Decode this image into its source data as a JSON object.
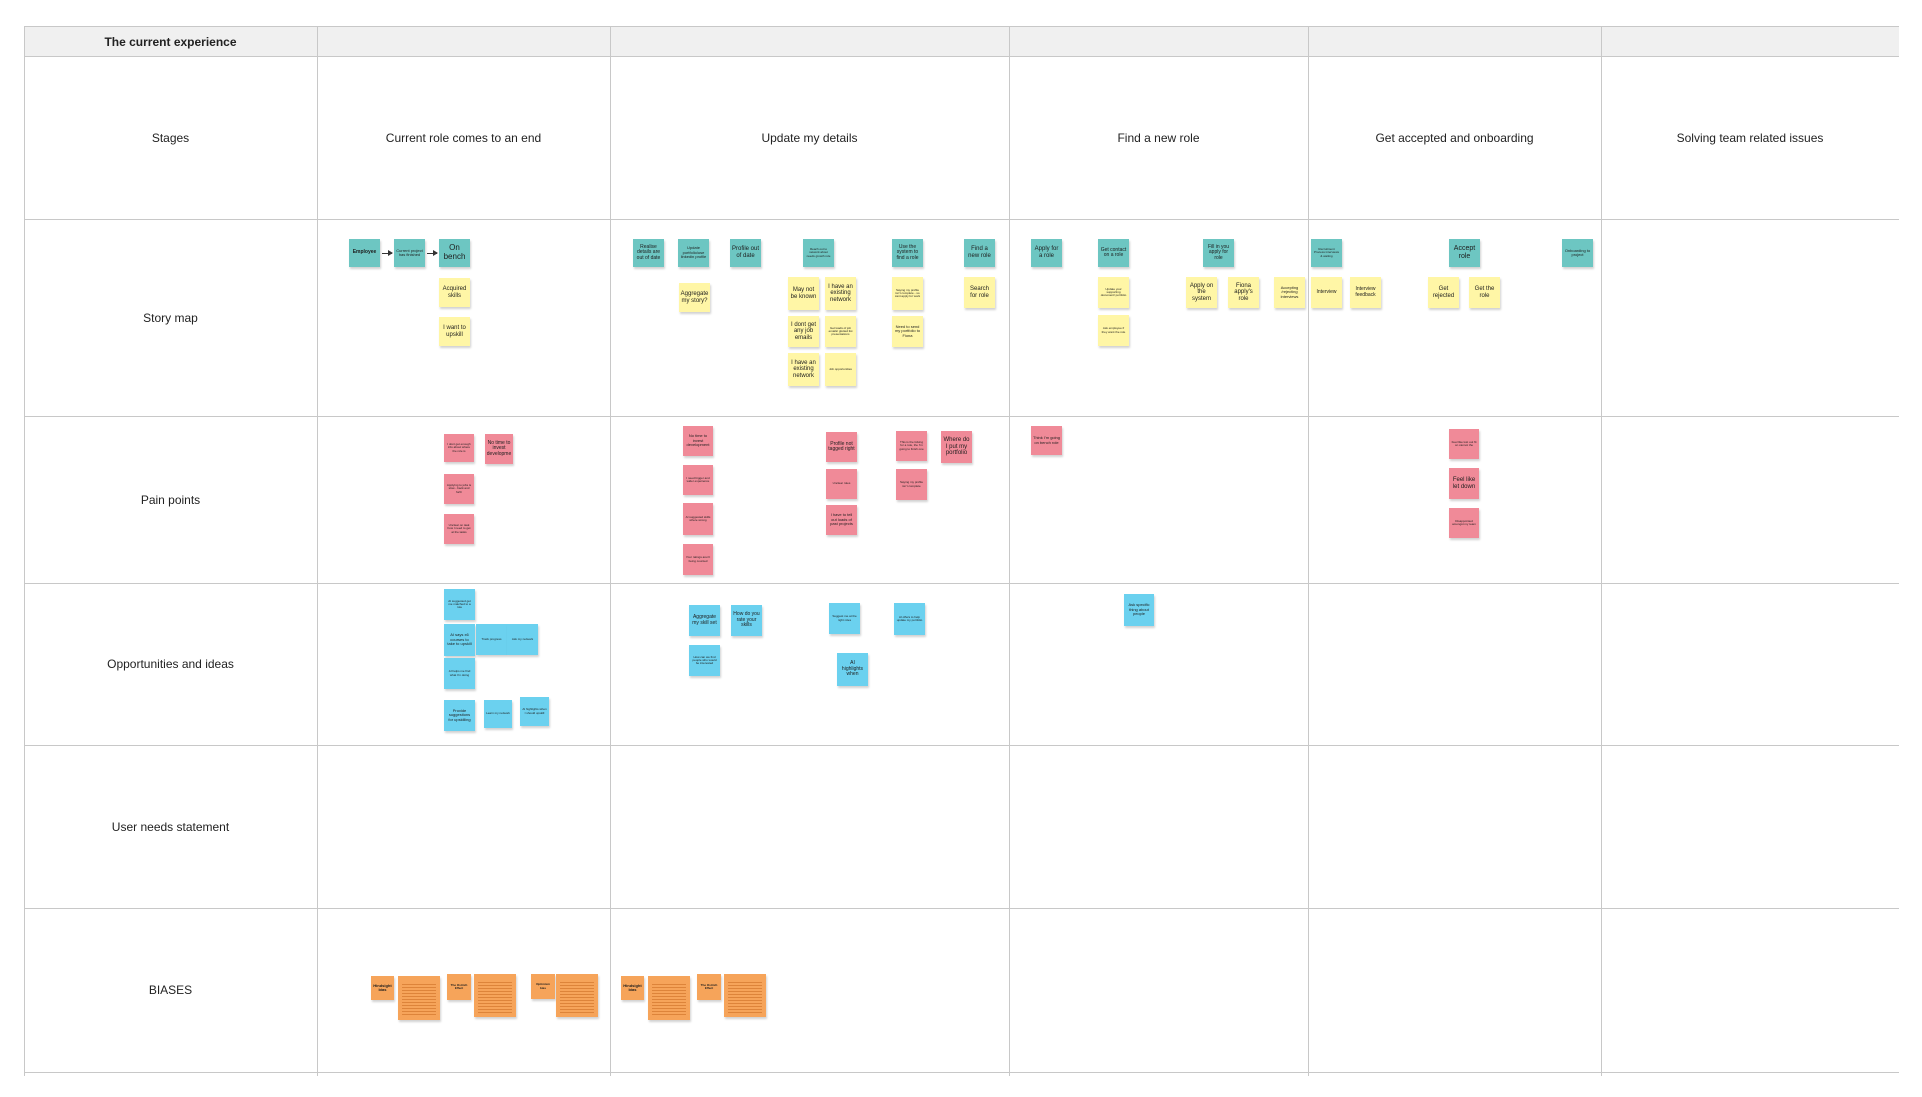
{
  "board": {
    "title": "The current experience",
    "columns": [
      "Current role comes to an end",
      "Update my details",
      "Find a new role",
      "Get accepted and onboarding",
      "Solving team related issues"
    ],
    "rows": [
      "Stages",
      "Story map",
      "Pain points",
      "Opportunities and ideas",
      "User needs statement",
      "BIASES"
    ]
  },
  "notes": {
    "employee": "Employee",
    "current_project_finished": "Current project has finished",
    "on_bench": "On bench",
    "acquired_skills": "Acquired skills",
    "want_upskill": "I want to upskill",
    "realise_details": "Realise details are out of date",
    "update_portfolio": "Update portfolio/use linkedin profile",
    "profile_out_of_date": "Profile out of date",
    "teal_small_1": "Reach out to network about needs growth role",
    "use_system": "Use the system to find a role",
    "find_new_role": "Find a new role",
    "aggregate_story": "Aggregate my story?",
    "may_not_be_known": "May not be known",
    "existing_network_1": "I have an existing network",
    "dont_get_emails": "I dont get any job emails",
    "skills_yellow": "Get loads of job emails/ glutted list presentations",
    "existing_network_2": "I have an existing network",
    "yellow_small_2": "Job opportunities",
    "yellow_small_3": "Saying my profile isn't complete - so cant apply for work",
    "need_portfolio": "Need to send my portfolio to Fiona",
    "search_for_role": "Search for role",
    "apply_for_role": "Apply for a role",
    "get_contact": "Get contact on a role",
    "update_docs": "Update your supporting document/ portfolio",
    "ask_employee": "Ask employee if they want the role",
    "fill_in_apply": "Fill in you apply for role",
    "apply_on_system": "Apply on the system",
    "fiona_applys": "Fiona apply's role",
    "accepting_interviews": "Accepting /rejecting interviews",
    "recruitment_process": "Recruitment Process interviews & waiting",
    "interview": "Interview",
    "interview_feedback": "Interview feedback",
    "accept_role": "Accept role",
    "get_rejected": "Get rejected",
    "get_the_role": "Get the role",
    "onboarding_project": "Onboarding to project",
    "pain_1": "I dont get enough info about where the role is",
    "no_time_dev": "No time to invest developme",
    "pain_2": "Applying to jobs is slow - back and forth",
    "pain_3": "Unclear on task how I need to get at the tasks",
    "pain_no_time": "No time to invest development",
    "pain_4": "I need bigger and wider experience",
    "pain_5": "AI suggested skills where wrong",
    "pain_6": "Your ratings aren't being counted",
    "profile_not_tagged": "Profile not tagged right",
    "pain_7": "Unclear roles",
    "pain_8": "Unclear roles in role",
    "have_to_tell": "I have to tell out loads of past projects",
    "pain_9": "This is the ticking for a role, the I'm going to finish one",
    "pain_10": "Saying my profile isn't complete",
    "where_portfolio": "Where do I put my portfolio",
    "pain_11": "Think I'm going on bench role",
    "pain_12": "Feel like lost out fit on cannot the",
    "feel_like_let_down": "Feel like let down",
    "pain_13": "Disappointed amongst my team",
    "opp_1": "AI suggested get me matched to a role",
    "ai_says": "AI says x6 courses to take to upskill",
    "opp_2": "Track progress",
    "opp_3": "Ask my network",
    "opp_4": "AI helps me find what I'm doing",
    "provide_suggestions": "Provide suggestions for upskilling",
    "opp_5": "Learn my network",
    "opp_6": "AI highlights when I should upskill",
    "aggregate_skill_set": "Aggregate my skill set",
    "how_do_you_rate": "How do you rate your skills",
    "opp_7": "How can we find people who would be interested",
    "opp_8": "Suggest me at the right roles",
    "ai_highlights": "AI highlights when",
    "opp_9": "AI offers to help update my portfolio",
    "opp_10": "Ask specific thing about people",
    "bias_1": "Hindsight bias",
    "bias_2": "The Ostrich Effect",
    "bias_3": "Optimism bias",
    "bias_4": "Hindsight bias",
    "bias_5": "The Ostrich Effect"
  },
  "colors": {
    "teal": "#6dc6c2",
    "yellow": "#fff6a6",
    "pink": "#f08a98",
    "blue": "#6bd1ef",
    "orange": "#f6a45a"
  }
}
